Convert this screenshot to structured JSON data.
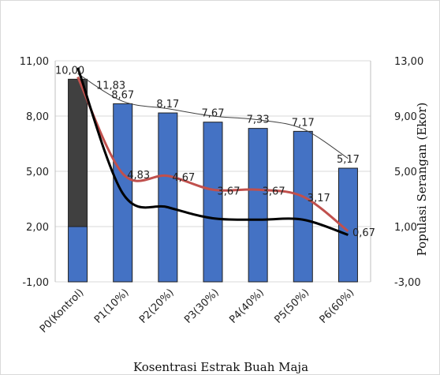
{
  "chart_data": {
    "type": "bar",
    "xlabel": "Kosentrasi Estrak Buah Maja",
    "ylabel": "",
    "y2label": "Populasi Serangan (Ekor)",
    "categories": [
      "P0(Kontrol)",
      "P1(10%)",
      "P2(20%)",
      "P3(30%)",
      "P4(40%)",
      "P5(50%)",
      "P6(60%)"
    ],
    "ylim": [
      -1,
      11
    ],
    "yticks": [
      "-1,00",
      "2,00",
      "5,00",
      "8,00",
      "11,00"
    ],
    "y2lim": [
      -3,
      13
    ],
    "y2ticks": [
      "-3,00",
      "1,00",
      "5,00",
      "9,00",
      "13,00"
    ],
    "bar_series": {
      "values": [
        10.0,
        8.67,
        8.17,
        7.67,
        7.33,
        7.17,
        5.17
      ],
      "labels": [
        "10,00",
        "8,67",
        "8,17",
        "7,67",
        "7,33",
        "7,17",
        "5,17"
      ],
      "color": "#4472c4",
      "first_bar_color": "#404040",
      "first_bar_base_value": 2.0
    },
    "thin_line": {
      "values": [
        10.3,
        8.8,
        8.4,
        8.0,
        7.8,
        7.3,
        5.7
      ],
      "color": "#404040"
    },
    "red_line": {
      "values": [
        11.83,
        4.83,
        4.67,
        3.67,
        3.67,
        3.17,
        0.67
      ],
      "labels": [
        "11,83",
        "4,83",
        "4,67",
        "3,67",
        "3,67",
        "3,17",
        "0,67"
      ],
      "color": "#c0504d"
    },
    "black_line": {
      "values": [
        12.5,
        3.4,
        2.4,
        1.6,
        1.5,
        1.5,
        0.4
      ],
      "color": "#000000"
    }
  }
}
